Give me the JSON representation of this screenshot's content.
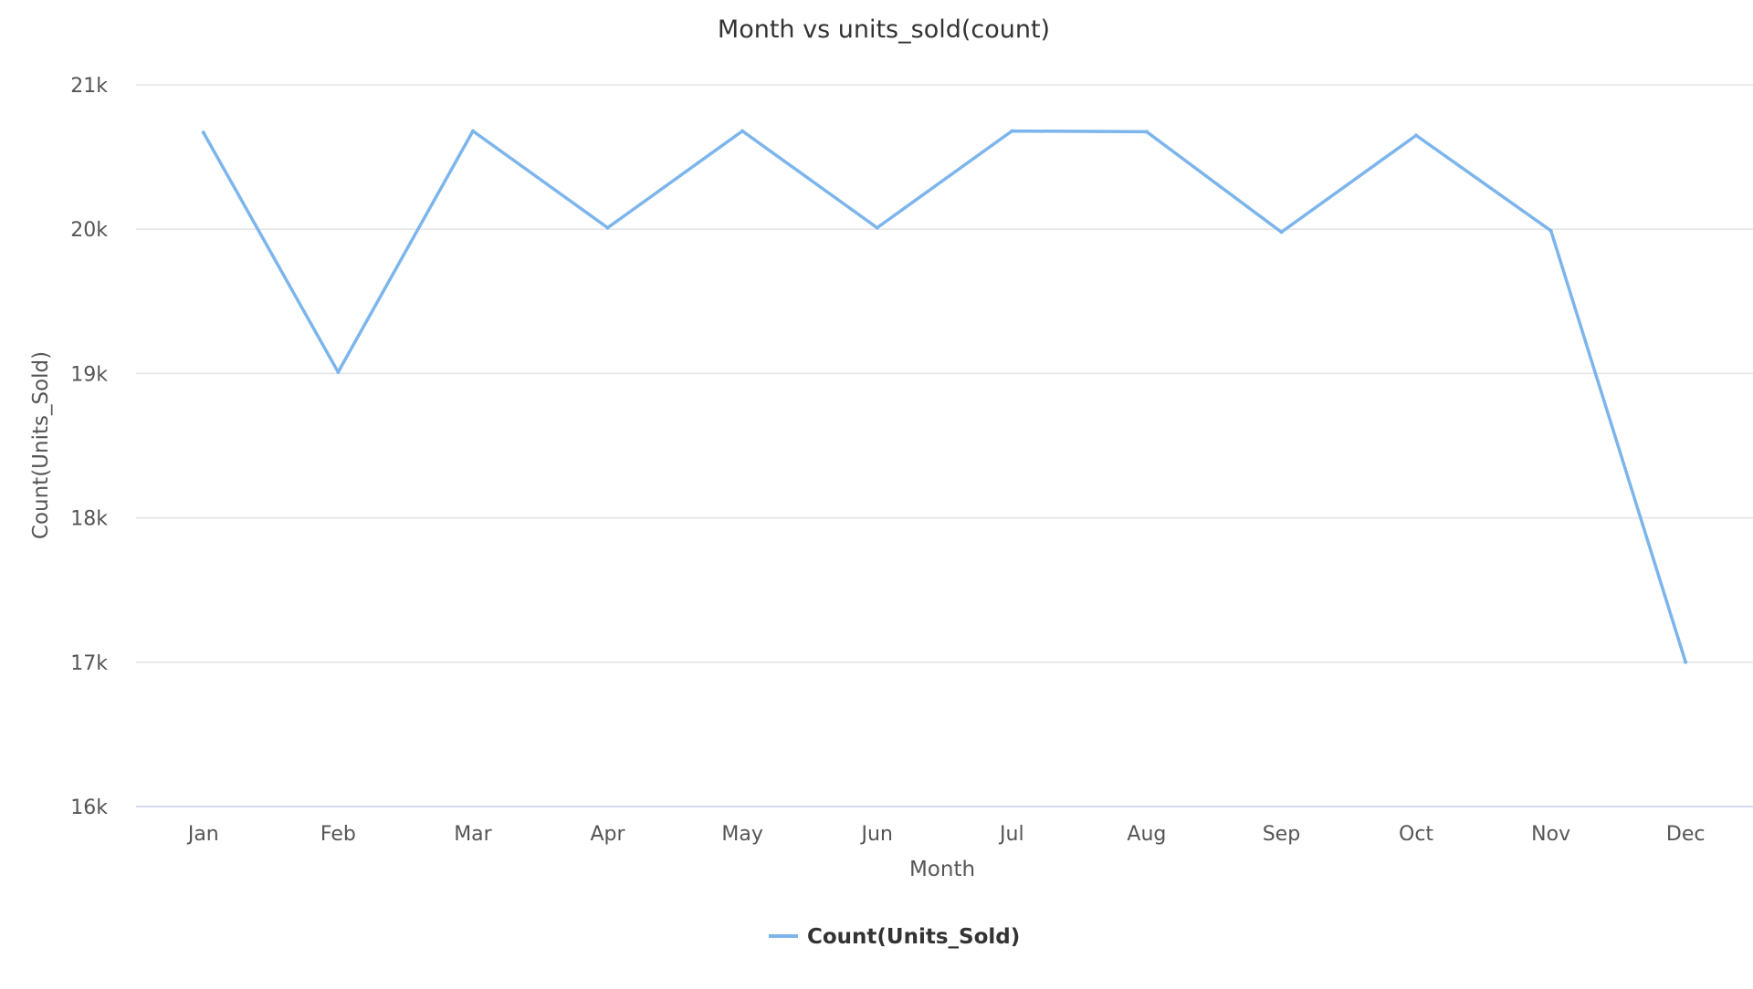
{
  "chart_data": {
    "type": "line",
    "title": "Month vs units_sold(count)",
    "xlabel": "Month",
    "ylabel": "Count(Units_Sold)",
    "categories": [
      "Jan",
      "Feb",
      "Mar",
      "Apr",
      "May",
      "Jun",
      "Jul",
      "Aug",
      "Sep",
      "Oct",
      "Nov",
      "Dec"
    ],
    "series": [
      {
        "name": "Count(Units_Sold)",
        "color": "#7cb5ec",
        "values": [
          20670,
          19010,
          20680,
          20010,
          20680,
          20010,
          20680,
          20675,
          19980,
          20650,
          19990,
          17000
        ]
      }
    ],
    "ylim": [
      16000,
      21000
    ],
    "yticks": [
      16000,
      17000,
      18000,
      19000,
      20000,
      21000
    ],
    "ytick_labels": [
      "16k",
      "17k",
      "18k",
      "19k",
      "20k",
      "21k"
    ],
    "grid": true,
    "legend_position": "bottom-center"
  }
}
